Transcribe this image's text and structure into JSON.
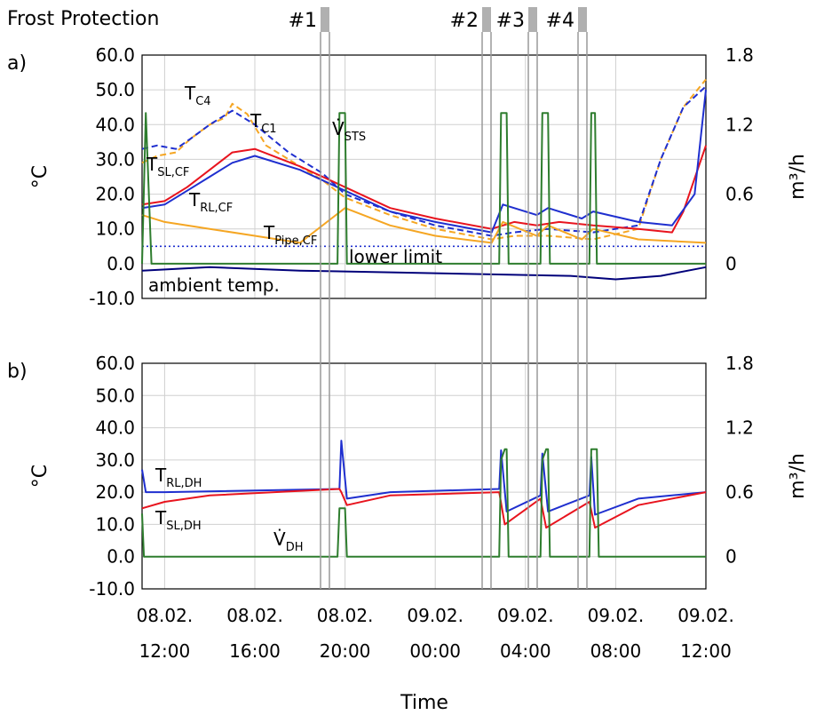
{
  "title": "Frost Protection",
  "xlabel": "Time",
  "markers": [
    {
      "label": "#1",
      "band": [
        19.7,
        20.0
      ]
    },
    {
      "label": "#2",
      "band": [
        2.8,
        3.2
      ]
    },
    {
      "label": "#3",
      "band": [
        4.7,
        5.0
      ]
    },
    {
      "label": "#4",
      "band": [
        6.8,
        7.1
      ]
    }
  ],
  "chart_data": [
    {
      "type": "line",
      "panel": "a)",
      "ylabel": "°C",
      "y2label": "m³/h",
      "xlim": [
        "08.02. 11:00",
        "09.02. 12:00"
      ],
      "ylim": [
        -10,
        60
      ],
      "y2lim": [
        -0.3,
        1.8
      ],
      "yticks": [
        "60.0",
        "50.0",
        "40.0",
        "30.0",
        "20.0",
        "10.0",
        "0.0",
        "-10.0"
      ],
      "y2ticks": [
        "1.8",
        "1.2",
        "0.6",
        "0"
      ],
      "grid": true,
      "annotations": [
        {
          "text": "T",
          "sub": "C4"
        },
        {
          "text": "T",
          "sub": "C1"
        },
        {
          "text": "V̇",
          "sub": "STS"
        },
        {
          "text": "T",
          "sub": "SL,CF"
        },
        {
          "text": "T",
          "sub": "RL,CF"
        },
        {
          "text": "T",
          "sub": "Pipe,CF"
        },
        {
          "text": "lower limit"
        },
        {
          "text": "ambient temp."
        }
      ],
      "series": [
        {
          "label": "T_C4",
          "color": "#f5a623",
          "dash": true,
          "points": [
            [
              "08.02. 11:00",
              29
            ],
            [
              "08.02. 11:40",
              31
            ],
            [
              "08.02. 12:30",
              32
            ],
            [
              "08.02. 13:10",
              36
            ],
            [
              "08.02. 14:00",
              40
            ],
            [
              "08.02. 14:40",
              42
            ],
            [
              "08.02. 15:00",
              46
            ],
            [
              "08.02. 15:40",
              43
            ],
            [
              "08.02. 16:30",
              34
            ],
            [
              "08.02. 18:00",
              28
            ],
            [
              "08.02. 19:00",
              24
            ],
            [
              "08.02. 20:00",
              19
            ],
            [
              "08.02. 22:00",
              14
            ],
            [
              "09.02. 00:00",
              10
            ],
            [
              "09.02. 02:30",
              7
            ],
            [
              "09.02. 03:30",
              8
            ],
            [
              "09.02. 05:00",
              8
            ],
            [
              "09.02. 07:00",
              7
            ],
            [
              "09.02. 09:00",
              10
            ],
            [
              "09.02. 10:00",
              30
            ],
            [
              "09.02. 11:00",
              45
            ],
            [
              "09.02. 12:00",
              53
            ]
          ]
        },
        {
          "label": "T_C1",
          "color": "#1f2fcf",
          "dash": true,
          "points": [
            [
              "08.02. 11:00",
              33
            ],
            [
              "08.02. 11:40",
              34
            ],
            [
              "08.02. 12:30",
              33
            ],
            [
              "08.02. 13:10",
              36
            ],
            [
              "08.02. 14:00",
              40
            ],
            [
              "08.02. 15:00",
              44
            ],
            [
              "08.02. 16:00",
              40
            ],
            [
              "08.02. 17:30",
              32
            ],
            [
              "08.02. 19:00",
              26
            ],
            [
              "08.02. 20:00",
              20
            ],
            [
              "08.02. 22:00",
              15
            ],
            [
              "09.02. 00:00",
              11
            ],
            [
              "09.02. 02:30",
              8
            ],
            [
              "09.02. 03:30",
              9
            ],
            [
              "09.02. 05:00",
              10
            ],
            [
              "09.02. 07:00",
              9
            ],
            [
              "09.02. 09:00",
              11
            ],
            [
              "09.02. 10:00",
              30
            ],
            [
              "09.02. 11:00",
              45
            ],
            [
              "09.02. 12:00",
              51
            ]
          ]
        },
        {
          "label": "T_SL,CF",
          "color": "#e8141e",
          "dash": false,
          "points": [
            [
              "08.02. 11:00",
              17
            ],
            [
              "08.02. 12:00",
              18
            ],
            [
              "08.02. 13:00",
              22
            ],
            [
              "08.02. 14:00",
              27
            ],
            [
              "08.02. 15:00",
              32
            ],
            [
              "08.02. 16:00",
              33
            ],
            [
              "08.02. 18:00",
              28
            ],
            [
              "08.02. 20:00",
              22
            ],
            [
              "08.02. 22:00",
              16
            ],
            [
              "09.02. 00:00",
              13
            ],
            [
              "09.02. 02:30",
              10
            ],
            [
              "09.02. 03:30",
              12
            ],
            [
              "09.02. 04:30",
              11
            ],
            [
              "09.02. 05:30",
              12
            ],
            [
              "09.02. 07:00",
              11
            ],
            [
              "09.02. 09:00",
              10
            ],
            [
              "09.02. 10:30",
              9
            ],
            [
              "09.02. 11:00",
              15
            ],
            [
              "09.02. 12:00",
              34
            ]
          ]
        },
        {
          "label": "T_RL,CF",
          "color": "#1f2fcf",
          "dash": false,
          "points": [
            [
              "08.02. 11:00",
              16
            ],
            [
              "08.02. 12:00",
              17
            ],
            [
              "08.02. 13:00",
              21
            ],
            [
              "08.02. 14:00",
              25
            ],
            [
              "08.02. 15:00",
              29
            ],
            [
              "08.02. 16:00",
              31
            ],
            [
              "08.02. 18:00",
              27
            ],
            [
              "08.02. 20:00",
              21
            ],
            [
              "08.02. 22:00",
              15
            ],
            [
              "09.02. 00:00",
              12
            ],
            [
              "09.02. 02:30",
              9
            ],
            [
              "09.02. 03:00",
              17
            ],
            [
              "09.02. 04:30",
              14
            ],
            [
              "09.02. 05:00",
              16
            ],
            [
              "09.02. 06:30",
              13
            ],
            [
              "09.02. 07:00",
              15
            ],
            [
              "09.02. 09:00",
              12
            ],
            [
              "09.02. 10:30",
              11
            ],
            [
              "09.02. 11:30",
              20
            ],
            [
              "09.02. 12:00",
              50
            ]
          ]
        },
        {
          "label": "T_Pipe,CF",
          "color": "#f5a623",
          "dash": false,
          "points": [
            [
              "08.02. 11:00",
              14
            ],
            [
              "08.02. 12:00",
              12
            ],
            [
              "08.02. 14:00",
              10
            ],
            [
              "08.02. 16:00",
              8
            ],
            [
              "08.02. 18:00",
              6
            ],
            [
              "08.02. 20:00",
              16
            ],
            [
              "08.02. 22:00",
              11
            ],
            [
              "09.02. 00:00",
              8
            ],
            [
              "09.02. 02:30",
              6
            ],
            [
              "09.02. 03:00",
              12
            ],
            [
              "09.02. 04:30",
              8
            ],
            [
              "09.02. 05:00",
              11
            ],
            [
              "09.02. 06:30",
              7
            ],
            [
              "09.02. 07:00",
              10
            ],
            [
              "09.02. 09:00",
              7
            ],
            [
              "09.02. 12:00",
              6
            ]
          ]
        },
        {
          "label": "lower limit",
          "color": "#1f2fcf",
          "dotted": true,
          "points": [
            [
              "08.02. 11:00",
              5
            ],
            [
              "09.02. 12:00",
              5
            ]
          ]
        },
        {
          "label": "ambient temp.",
          "color": "#00007a",
          "dash": false,
          "points": [
            [
              "08.02. 11:00",
              -2
            ],
            [
              "08.02. 14:00",
              -1
            ],
            [
              "08.02. 18:00",
              -2
            ],
            [
              "08.02. 22:00",
              -2.5
            ],
            [
              "09.02. 02:00",
              -3
            ],
            [
              "09.02. 06:00",
              -3.5
            ],
            [
              "09.02. 08:00",
              -4.5
            ],
            [
              "09.02. 10:00",
              -3.5
            ],
            [
              "09.02. 12:00",
              -1
            ]
          ]
        },
        {
          "label": "V̇_STS",
          "color": "#2e7d2e",
          "axis": "y2",
          "points": [
            [
              "08.02. 11:00",
              0
            ],
            [
              "08.02. 11:10",
              1.3
            ],
            [
              "08.02. 11:25",
              0
            ],
            [
              "08.02. 19:40",
              0
            ],
            [
              "08.02. 19:45",
              1.3
            ],
            [
              "08.02. 20:00",
              1.3
            ],
            [
              "08.02. 20:05",
              0
            ],
            [
              "09.02. 02:50",
              0
            ],
            [
              "09.02. 02:55",
              1.3
            ],
            [
              "09.02. 03:10",
              1.3
            ],
            [
              "09.02. 03:15",
              0
            ],
            [
              "09.02. 04:40",
              0
            ],
            [
              "09.02. 04:45",
              1.3
            ],
            [
              "09.02. 05:00",
              1.3
            ],
            [
              "09.02. 05:05",
              0
            ],
            [
              "09.02. 06:50",
              0
            ],
            [
              "09.02. 06:55",
              1.3
            ],
            [
              "09.02. 07:05",
              1.3
            ],
            [
              "09.02. 07:10",
              0
            ],
            [
              "09.02. 12:00",
              0
            ]
          ]
        }
      ]
    },
    {
      "type": "line",
      "panel": "b)",
      "ylabel": "°C",
      "y2label": "m³/h",
      "xlim": [
        "08.02. 11:00",
        "09.02. 12:00"
      ],
      "ylim": [
        -10,
        60
      ],
      "y2lim": [
        -0.3,
        1.8
      ],
      "yticks": [
        "60.0",
        "50.0",
        "40.0",
        "30.0",
        "20.0",
        "10.0",
        "0.0",
        "-10.0"
      ],
      "y2ticks": [
        "1.8",
        "1.2",
        "0.6",
        "0"
      ],
      "grid": true,
      "xticks": [
        {
          "line1": "08.02.",
          "line2": "12:00"
        },
        {
          "line1": "08.02.",
          "line2": "16:00"
        },
        {
          "line1": "08.02.",
          "line2": "20:00"
        },
        {
          "line1": "09.02.",
          "line2": "00:00"
        },
        {
          "line1": "09.02.",
          "line2": "04:00"
        },
        {
          "line1": "09.02.",
          "line2": "08:00"
        },
        {
          "line1": "09.02.",
          "line2": "12:00"
        }
      ],
      "annotations": [
        {
          "text": "T",
          "sub": "RL,DH"
        },
        {
          "text": "T",
          "sub": "SL,DH"
        },
        {
          "text": "V̇",
          "sub": "DH"
        }
      ],
      "series": [
        {
          "label": "T_RL,DH",
          "color": "#1f2fcf",
          "points": [
            [
              "08.02. 11:00",
              27
            ],
            [
              "08.02. 11:10",
              20
            ],
            [
              "08.02. 12:00",
              20
            ],
            [
              "08.02. 19:45",
              21
            ],
            [
              "08.02. 19:50",
              36
            ],
            [
              "08.02. 20:05",
              18
            ],
            [
              "08.02. 22:00",
              20
            ],
            [
              "09.02. 02:50",
              21
            ],
            [
              "09.02. 02:55",
              33
            ],
            [
              "09.02. 03:10",
              14
            ],
            [
              "09.02. 04:40",
              19
            ],
            [
              "09.02. 04:45",
              32
            ],
            [
              "09.02. 05:00",
              14
            ],
            [
              "09.02. 06:50",
              19
            ],
            [
              "09.02. 06:55",
              31
            ],
            [
              "09.02. 07:05",
              13
            ],
            [
              "09.02. 09:00",
              18
            ],
            [
              "09.02. 12:00",
              20
            ]
          ]
        },
        {
          "label": "T_SL,DH",
          "color": "#e8141e",
          "points": [
            [
              "08.02. 11:00",
              15
            ],
            [
              "08.02. 12:00",
              17
            ],
            [
              "08.02. 14:00",
              19
            ],
            [
              "08.02. 19:45",
              21
            ],
            [
              "08.02. 19:50",
              20
            ],
            [
              "08.02. 20:05",
              16
            ],
            [
              "08.02. 22:00",
              19
            ],
            [
              "09.02. 02:50",
              20
            ],
            [
              "09.02. 03:05",
              10
            ],
            [
              "09.02. 04:40",
              18
            ],
            [
              "09.02. 04:55",
              9
            ],
            [
              "09.02. 06:50",
              17
            ],
            [
              "09.02. 07:05",
              9
            ],
            [
              "09.02. 09:00",
              16
            ],
            [
              "09.02. 12:00",
              20
            ]
          ]
        },
        {
          "label": "V̇_DH",
          "color": "#2e7d2e",
          "axis": "y2",
          "points": [
            [
              "08.02. 11:00",
              0.4
            ],
            [
              "08.02. 11:05",
              0
            ],
            [
              "08.02. 19:40",
              0
            ],
            [
              "08.02. 19:45",
              0.45
            ],
            [
              "08.02. 20:00",
              0.45
            ],
            [
              "08.02. 20:05",
              0
            ],
            [
              "09.02. 02:50",
              0
            ],
            [
              "09.02. 02:55",
              0.9
            ],
            [
              "09.02. 03:05",
              1.0
            ],
            [
              "09.02. 03:10",
              1.0
            ],
            [
              "09.02. 03:15",
              0
            ],
            [
              "09.02. 04:40",
              0
            ],
            [
              "09.02. 04:45",
              0.9
            ],
            [
              "09.02. 04:55",
              1.0
            ],
            [
              "09.02. 05:00",
              1.0
            ],
            [
              "09.02. 05:05",
              0
            ],
            [
              "09.02. 06:50",
              0
            ],
            [
              "09.02. 06:55",
              1.0
            ],
            [
              "09.02. 07:10",
              1.0
            ],
            [
              "09.02. 07:15",
              0
            ],
            [
              "09.02. 12:00",
              0
            ]
          ]
        }
      ]
    }
  ]
}
